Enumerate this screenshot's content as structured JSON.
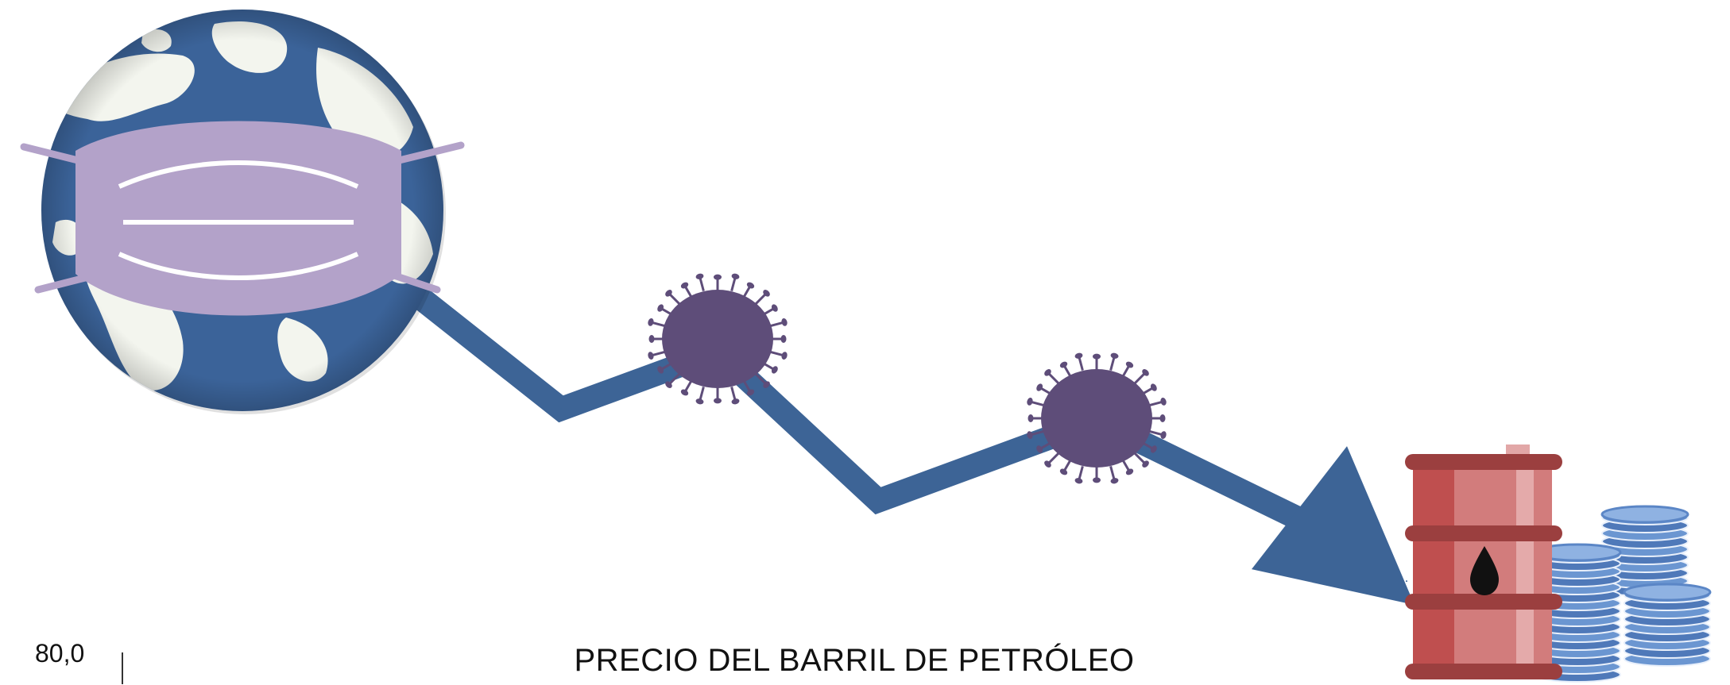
{
  "chart_data": {
    "type": "line",
    "title": "PRECIO DEL BARRIL DE PETRÓLEO",
    "yticks": [
      "80,0"
    ],
    "series": [
      {
        "values": [
          70,
          48,
          58,
          32,
          46,
          18
        ]
      }
    ],
    "trend": "down",
    "colors": {
      "line": "#3d6496",
      "virus": "#5e4d79",
      "mask": "#b3a2c9",
      "globe_ocean": "#3b6399",
      "globe_land": "#f3f5ee",
      "barrel": "#c94f4f",
      "coins": "#5b86c6"
    },
    "icons": [
      "globe-icon",
      "face-mask-icon",
      "virus-icon",
      "oil-barrel-icon",
      "oil-drop-icon",
      "coin-stack-icon"
    ]
  }
}
